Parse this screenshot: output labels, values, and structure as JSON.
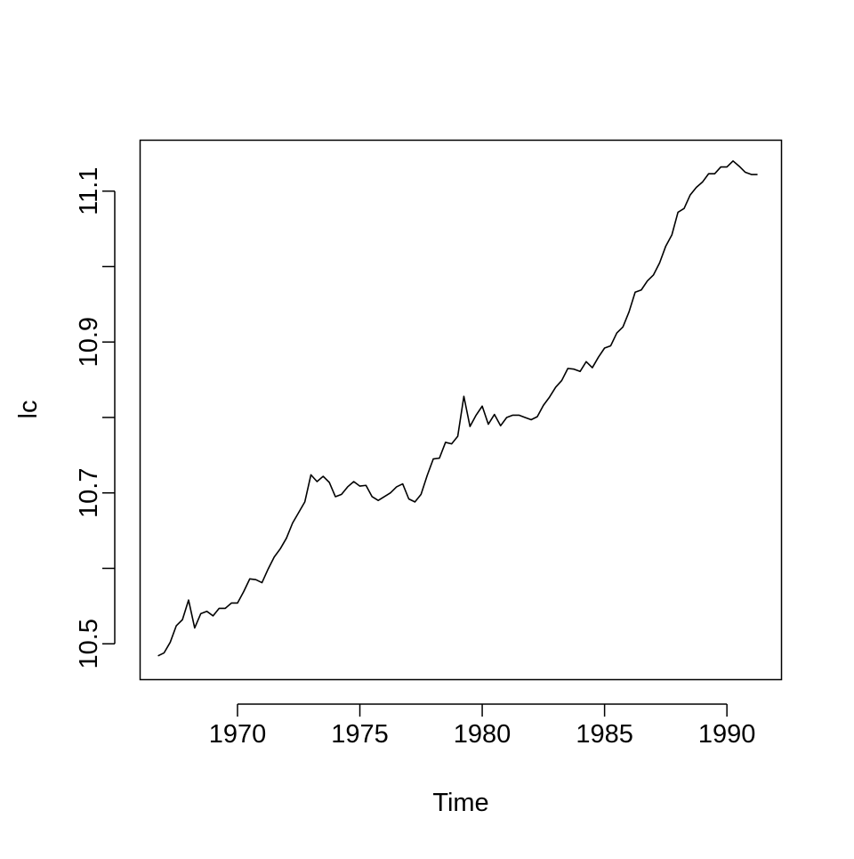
{
  "chart_data": {
    "type": "line",
    "title": "",
    "xlabel": "Time",
    "ylabel": "lc",
    "xlim": [
      1966.02,
      1992.23
    ],
    "ylim": [
      10.4525,
      11.1675
    ],
    "x_ticks": [
      1970,
      1975,
      1980,
      1985,
      1990
    ],
    "x_tick_labels": [
      "1970",
      "1975",
      "1980",
      "1985",
      "1990"
    ],
    "y_ticks": [
      10.5,
      10.6,
      10.7,
      10.8,
      10.9,
      11.0,
      11.1
    ],
    "y_tick_labels": [
      "10.5",
      "",
      "10.7",
      "",
      "10.9",
      "",
      "11.1"
    ],
    "grid": false,
    "legend": "none",
    "line_color": "#000000",
    "series": [
      {
        "x_start": 1966.75,
        "x_step": 0.25,
        "values": [
          10.484,
          10.488,
          10.502,
          10.524,
          10.532,
          10.558,
          10.521,
          10.54,
          10.543,
          10.537,
          10.547,
          10.547,
          10.554,
          10.554,
          10.569,
          10.586,
          10.585,
          10.581,
          10.599,
          10.615,
          10.626,
          10.64,
          10.66,
          10.674,
          10.688,
          10.724,
          10.715,
          10.722,
          10.714,
          10.695,
          10.698,
          10.708,
          10.715,
          10.709,
          10.71,
          10.695,
          10.69,
          10.695,
          10.7,
          10.708,
          10.712,
          10.692,
          10.688,
          10.698,
          10.723,
          10.745,
          10.746,
          10.767,
          10.765,
          10.775,
          10.828,
          10.788,
          10.803,
          10.815,
          10.791,
          10.804,
          10.789,
          10.8,
          10.803,
          10.803,
          10.8,
          10.797,
          10.801,
          10.816,
          10.827,
          10.84,
          10.849,
          10.865,
          10.864,
          10.861,
          10.874,
          10.866,
          10.88,
          10.892,
          10.895,
          10.912,
          10.92,
          10.94,
          10.966,
          10.969,
          10.981,
          10.989,
          11.005,
          11.027,
          11.042,
          11.072,
          11.077,
          11.095,
          11.105,
          11.112,
          11.123,
          11.123,
          11.132,
          11.132,
          11.14,
          11.133,
          11.125,
          11.122,
          11.122
        ]
      }
    ]
  }
}
